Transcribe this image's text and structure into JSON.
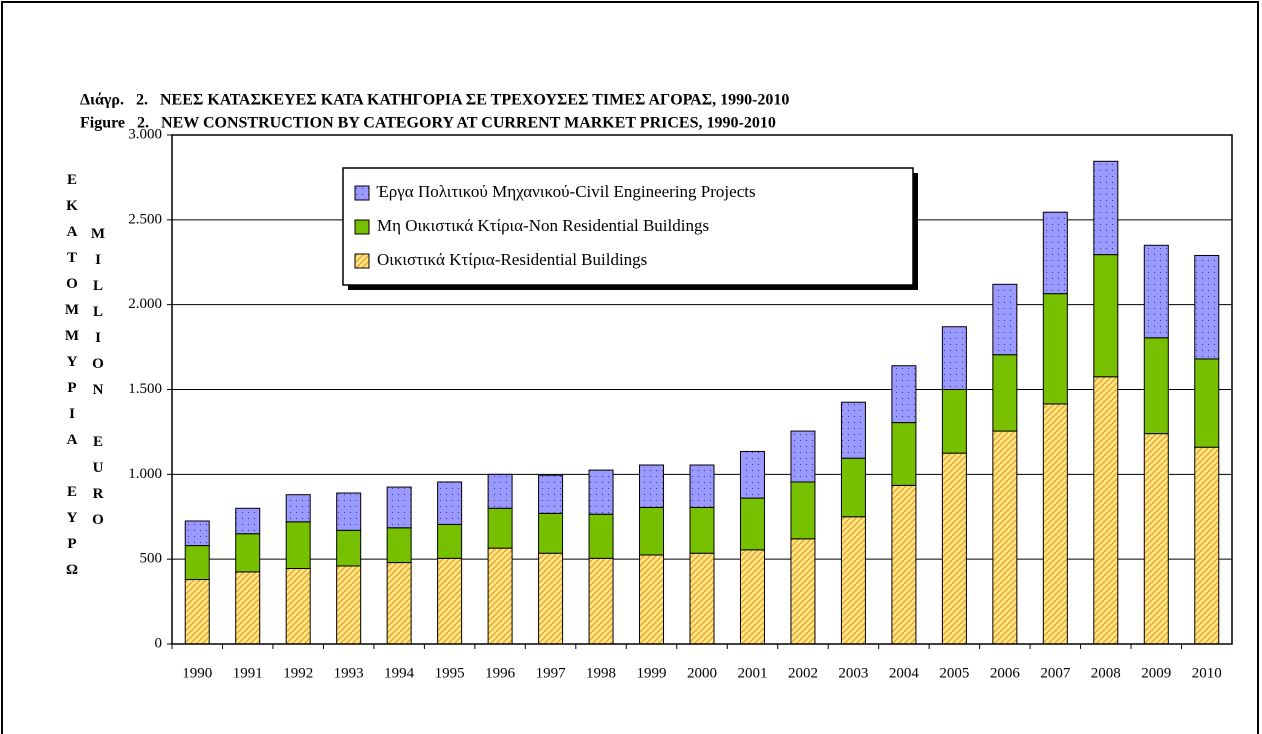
{
  "chart_data": {
    "type": "stacked_bar",
    "title": "Διάγρ.   2.   ΝΕΕΣ ΚΑΤΑΣΚΕΥΕΣ ΚΑΤΑ ΚΑΤΗΓΟΡΙΑ ΣΕ ΤΡΕΧΟΥΣΕΣ ΤΙΜΕΣ ΑΓΟΡΑΣ, 1990-2010",
    "subtitle": "Figure   2.   NEW CONSTRUCTION BY CATEGORY AT CURRENT MARKET PRICES, 1990-2010",
    "y_label": "ΕΚΑΤΟΜΜΥΡΙΑ ΕΥΡΩ",
    "y_label_2": "MILLION EURO",
    "categories": [
      "1990",
      "1991",
      "1992",
      "1993",
      "1994",
      "1995",
      "1996",
      "1997",
      "1998",
      "1999",
      "2000",
      "2001",
      "2002",
      "2003",
      "2004",
      "2005",
      "2006",
      "2007",
      "2008",
      "2009",
      "2010"
    ],
    "series": [
      {
        "name": "Οικιστικά Κτίρια-Residential Buildings",
        "color": "#ffe680",
        "values": [
          380,
          425,
          445,
          460,
          480,
          505,
          565,
          535,
          505,
          525,
          535,
          555,
          620,
          750,
          935,
          1125,
          1255,
          1415,
          1575,
          1240,
          1160
        ]
      },
      {
        "name": "Μη Οικιστικά Κτίρια-Non Residential Buildings",
        "color": "#77c000",
        "values": [
          200,
          225,
          275,
          210,
          205,
          200,
          235,
          235,
          260,
          280,
          270,
          305,
          335,
          345,
          370,
          375,
          450,
          650,
          720,
          565,
          520
        ]
      },
      {
        "name": "Έργα Πολιτικού Μηχανικού-Civil Engineering Projects",
        "color": "#9999ff",
        "values": [
          145,
          150,
          160,
          220,
          240,
          250,
          200,
          225,
          260,
          250,
          250,
          275,
          300,
          330,
          335,
          370,
          415,
          480,
          550,
          545,
          610
        ]
      }
    ],
    "ylim": [
      0,
      3000
    ],
    "yticks": [
      0,
      500,
      {
        "value": 1000,
        "label": "1.000"
      },
      {
        "value": 1500,
        "label": "1.500"
      },
      {
        "value": 2000,
        "label": "2.000"
      },
      {
        "value": 2500,
        "label": "2.500"
      },
      {
        "value": 3000,
        "label": "3.000"
      }
    ],
    "grid": true,
    "legend": "top-left"
  }
}
